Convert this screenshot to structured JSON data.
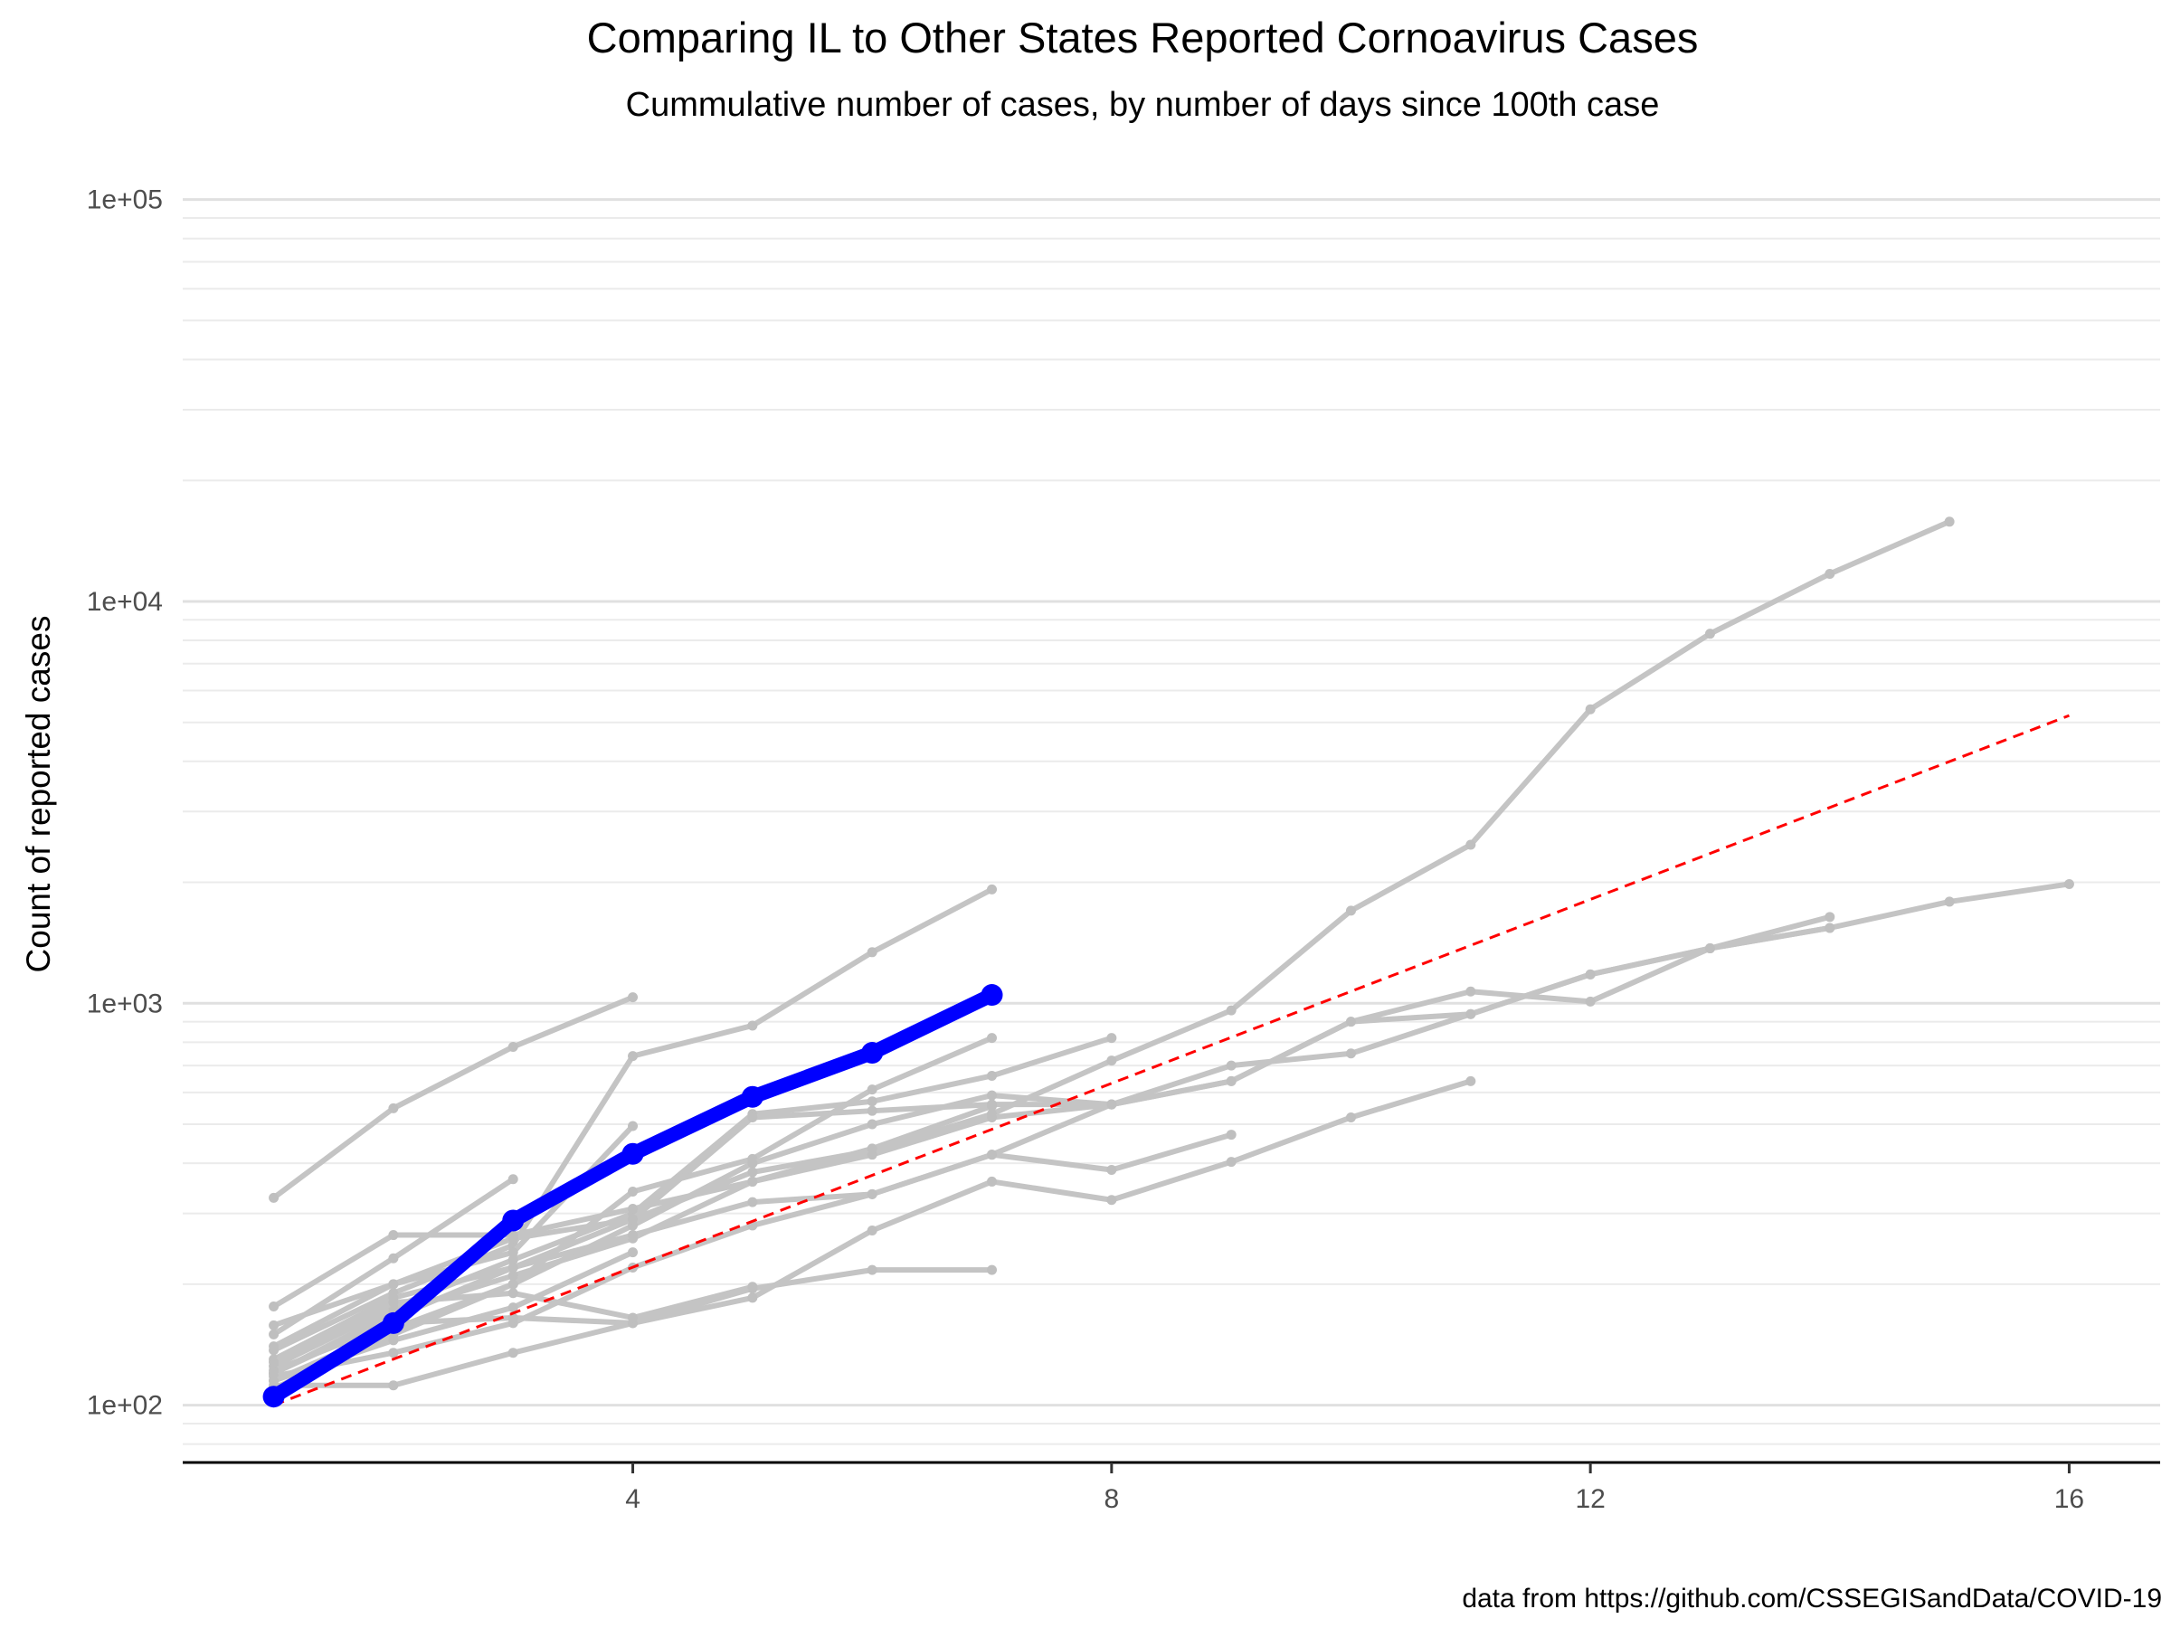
{
  "chart_data": {
    "type": "line",
    "title": "Comparing IL to Other States Reported Cornoavirus Cases",
    "subtitle": "Cummulative number of cases, by number of days since 100th case",
    "xlabel": "",
    "ylabel": "Count of reported cases",
    "caption": "data from https://github.com/CSSEGISandData/COVID-19",
    "x_scale": "linear",
    "y_scale": "log10",
    "xlim": [
      0.24,
      16.76
    ],
    "ylim": [
      72,
      130000
    ],
    "x_ticks": [
      4,
      8,
      12,
      16
    ],
    "x_tick_labels": [
      "4",
      "8",
      "12",
      "16"
    ],
    "y_ticks": [
      100,
      1000,
      10000,
      100000
    ],
    "y_tick_labels": [
      "1e+02",
      "1e+03",
      "1e+04",
      "1e+05"
    ],
    "grid": "horizontal",
    "legend": "none",
    "colors": {
      "highlight": "#0000ff",
      "others": "#c4c4c4",
      "reference": "#ff0000"
    },
    "highlight_series": {
      "x": [
        1,
        2,
        3,
        4,
        5,
        6,
        7
      ],
      "y": [
        105,
        160,
        288,
        422,
        585,
        753,
        1049
      ]
    },
    "reference_line": {
      "style": "dashed",
      "x": [
        1,
        16
      ],
      "y": [
        100,
        5200
      ]
    },
    "series": [
      {
        "x": [
          1,
          2,
          3,
          4,
          5,
          6,
          7,
          8,
          9,
          10,
          11,
          12,
          13,
          14,
          15
        ],
        "y": [
          328,
          548,
          779,
          1035,
          0,
          0,
          0,
          0,
          0,
          0,
          0,
          0,
          0,
          0,
          0
        ]
      },
      {
        "x": [
          1,
          2,
          3,
          4,
          5,
          6,
          7,
          8,
          9,
          10,
          11,
          12,
          13,
          14,
          15
        ],
        "y": [
          137,
          190,
          250,
          739,
          880,
          1340,
          1920,
          0,
          0,
          0,
          0,
          0,
          0,
          0,
          0
        ]
      },
      {
        "x": [
          1,
          2,
          3,
          4,
          5,
          6,
          7,
          8,
          9,
          10,
          11,
          12,
          13,
          14,
          15
        ],
        "y": [
          125,
          175,
          230,
          300,
          530,
          570,
          660,
          820,
          0,
          0,
          0,
          0,
          0,
          0,
          0
        ]
      },
      {
        "x": [
          1,
          2,
          3,
          4,
          5,
          6,
          7,
          8,
          9,
          10,
          11,
          12,
          13,
          14,
          15
        ],
        "y": [
          120,
          165,
          220,
          290,
          520,
          540,
          560,
          560,
          700,
          750,
          940,
          1180,
          1370,
          1540,
          0
        ]
      },
      {
        "x": [
          1,
          2,
          3,
          4,
          5,
          6,
          7,
          8,
          9,
          10,
          11,
          12,
          13,
          14,
          15
        ],
        "y": [
          110,
          150,
          200,
          340,
          410,
          610,
          820,
          0,
          0,
          0,
          0,
          0,
          0,
          0,
          0
        ]
      },
      {
        "x": [
          1,
          2,
          3,
          4,
          5,
          6,
          7,
          8,
          9,
          10,
          11,
          12,
          13,
          14,
          15
        ],
        "y": [
          115,
          155,
          200,
          280,
          400,
          500,
          590,
          560,
          640,
          900,
          1070,
          1010,
          1370,
          1640,
          0
        ]
      },
      {
        "x": [
          1,
          2,
          3,
          4,
          5,
          6,
          7,
          8,
          9,
          10,
          11,
          12,
          13,
          14,
          15,
          16
        ],
        "y": [
          140,
          200,
          260,
          290,
          380,
          430,
          530,
          720,
          960,
          1700,
          2480,
          5390,
          8310,
          11710,
          15790,
          0
        ]
      },
      {
        "x": [
          1,
          2,
          3,
          4,
          5,
          6,
          7,
          8,
          9,
          10,
          11,
          12,
          13,
          14,
          15,
          16
        ],
        "y": [
          120,
          170,
          210,
          260,
          360,
          420,
          520,
          560,
          640,
          900,
          940,
          1180,
          1370,
          1540,
          1790,
          1980
        ]
      },
      {
        "x": [
          1,
          2,
          3,
          4,
          5,
          6,
          7
        ],
        "y": [
          176,
          265,
          265,
          308,
          360,
          435,
          555
        ]
      },
      {
        "x": [
          1,
          2,
          3,
          4,
          5,
          6,
          7,
          8
        ],
        "y": [
          130,
          185,
          220,
          265,
          320,
          335,
          420,
          560
        ]
      },
      {
        "x": [
          1,
          2,
          3,
          4,
          5,
          6,
          7,
          8,
          9
        ],
        "y": [
          118,
          135,
          160,
          220,
          280,
          335,
          420,
          385,
          471
        ]
      },
      {
        "x": [
          1,
          2,
          3,
          4,
          5,
          6,
          7,
          8,
          9,
          10,
          11
        ],
        "y": [
          112,
          112,
          135,
          160,
          185,
          272,
          360,
          324,
          403,
          520,
          640
        ]
      },
      {
        "x": [
          1,
          2,
          3,
          4,
          5,
          6,
          7
        ],
        "y": [
          158,
          200,
          240,
          495,
          0,
          0,
          0
        ]
      },
      {
        "x": [
          1,
          2,
          3,
          4,
          5,
          6,
          7
        ],
        "y": [
          150,
          232,
          365,
          0,
          0,
          0,
          0
        ]
      },
      {
        "x": [
          1,
          2,
          3,
          4,
          5,
          6,
          7
        ],
        "y": [
          122,
          160,
          165,
          160,
          195,
          217,
          217
        ]
      },
      {
        "x": [
          1,
          2,
          3,
          4,
          5,
          6,
          7
        ],
        "y": [
          115,
          145,
          175,
          240,
          0,
          0,
          0
        ]
      },
      {
        "x": [
          1,
          2,
          3,
          4,
          5
        ],
        "y": [
          128,
          180,
          190,
          165,
          197
        ]
      }
    ]
  }
}
